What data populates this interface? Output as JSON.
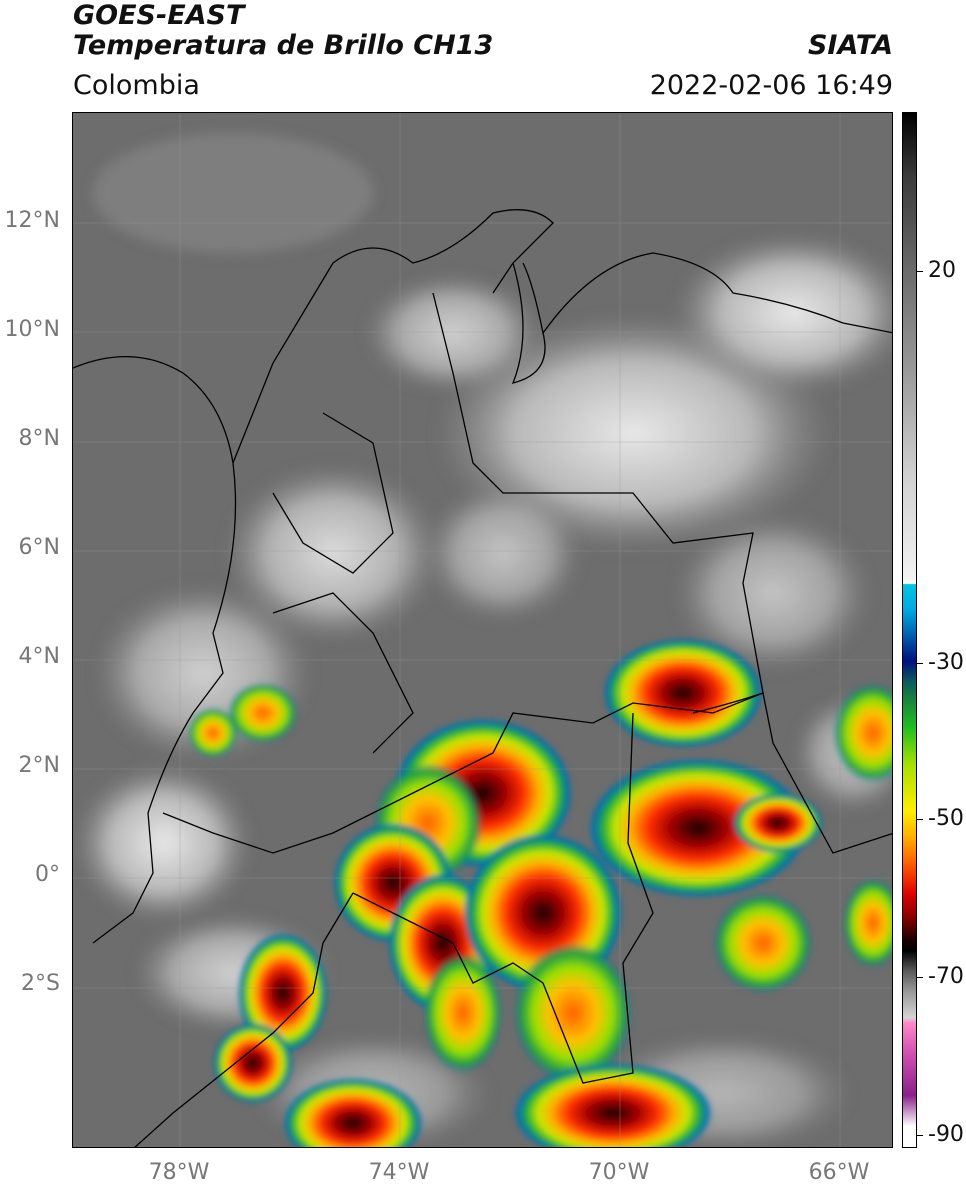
{
  "header": {
    "satellite": "GOES-EAST",
    "product": "Temperatura de Brillo CH13",
    "region": "Colombia",
    "agency": "SIATA",
    "datetime": "2022-02-06 16:49"
  },
  "axes": {
    "lat_labels": [
      "12°N",
      "10°N",
      "8°N",
      "6°N",
      "4°N",
      "2°N",
      "0°",
      "2°S"
    ],
    "lon_labels": [
      "78°W",
      "74°W",
      "70°W",
      "66°W"
    ]
  },
  "colorbar": {
    "tick_labels": [
      "20",
      "-30",
      "-50",
      "-70",
      "-90"
    ]
  },
  "colors": {
    "background": "#6f6f6f",
    "border": "#000000"
  }
}
